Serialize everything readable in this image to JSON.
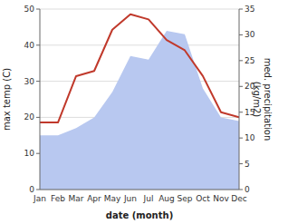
{
  "chart_data": {
    "type": "line",
    "xlabel": "date (month)",
    "ylabel": "max temp (C)",
    "y2label": "med. precipitation\n(kg/m2)",
    "categories": [
      "Jan",
      "Feb",
      "Mar",
      "Apr",
      "May",
      "Jun",
      "Jul",
      "Aug",
      "Sep",
      "Oct",
      "Nov",
      "Dec"
    ],
    "series": [
      {
        "type": "area",
        "color": "#b8c8f0",
        "values": [
          15,
          15,
          17,
          20,
          27,
          37,
          36,
          44,
          43,
          28,
          20,
          19
        ]
      },
      {
        "type": "line",
        "color": "#c0392b",
        "axis": "y2",
        "values": [
          13,
          13,
          22,
          23,
          31,
          34,
          33,
          29,
          27,
          22,
          15,
          14
        ]
      }
    ],
    "ylim": [
      0,
      50
    ],
    "yticks": [
      0,
      10,
      20,
      30,
      40,
      50
    ],
    "y2lim": [
      0,
      35
    ],
    "y2ticks": [
      0,
      5,
      10,
      15,
      20,
      25,
      30,
      35
    ],
    "grid": true
  }
}
